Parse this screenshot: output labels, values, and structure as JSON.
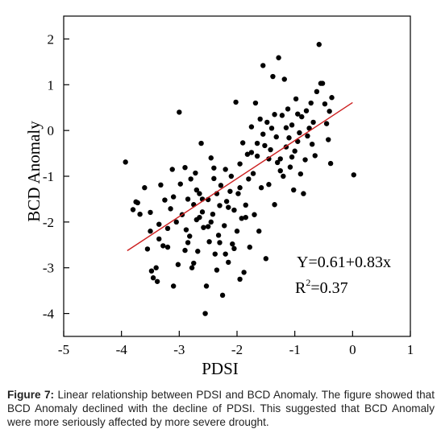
{
  "chart_data": {
    "type": "scatter",
    "xlabel": "PDSI",
    "ylabel": "BCD Anomaly",
    "xlim": [
      -5,
      1
    ],
    "ylim": [
      -4.5,
      2.5
    ],
    "xticks": [
      "-5",
      "-4",
      "-3",
      "-2",
      "-1",
      "0",
      "1"
    ],
    "yticks": [
      "2",
      "1",
      "0",
      "-1",
      "-2",
      "-3",
      "-4"
    ],
    "grid": false,
    "legend": "none",
    "fit_line": {
      "slope": 0.83,
      "intercept": 0.61,
      "x_range": [
        -3.9,
        0.0
      ],
      "color": "#cc1f1f"
    },
    "equation_text": "Y=0.61+0.83x",
    "r2_label": "R",
    "r2_sup": "2",
    "r2_value": "=0.37",
    "marker_color": "#000000",
    "points": [
      [
        -3.93,
        -0.69
      ],
      [
        -3.8,
        -1.73
      ],
      [
        -3.75,
        -1.56
      ],
      [
        -3.72,
        -1.58
      ],
      [
        -3.68,
        -1.83
      ],
      [
        -3.6,
        -1.25
      ],
      [
        -3.55,
        -2.59
      ],
      [
        -3.5,
        -1.79
      ],
      [
        -3.48,
        -3.07
      ],
      [
        -3.45,
        -3.22
      ],
      [
        -3.4,
        -3.0
      ],
      [
        -3.38,
        -3.3
      ],
      [
        -3.35,
        -2.37
      ],
      [
        -3.32,
        -1.19
      ],
      [
        -3.28,
        -2.52
      ],
      [
        -3.25,
        -1.52
      ],
      [
        -3.2,
        -2.14
      ],
      [
        -3.15,
        -1.71
      ],
      [
        -3.12,
        -0.85
      ],
      [
        -3.1,
        -3.4
      ],
      [
        -3.05,
        -2.0
      ],
      [
        -3.02,
        -2.93
      ],
      [
        -3.0,
        0.4
      ],
      [
        -2.98,
        -1.17
      ],
      [
        -2.95,
        -1.84
      ],
      [
        -2.9,
        -0.81
      ],
      [
        -2.88,
        -2.17
      ],
      [
        -2.85,
        -1.5
      ],
      [
        -2.82,
        -2.31
      ],
      [
        -2.8,
        -1.06
      ],
      [
        -2.78,
        -3.0
      ],
      [
        -2.75,
        -1.62
      ],
      [
        -2.72,
        -0.93
      ],
      [
        -2.7,
        -1.95
      ],
      [
        -2.68,
        -2.64
      ],
      [
        -2.65,
        -1.38
      ],
      [
        -2.62,
        -0.28
      ],
      [
        -2.6,
        -1.78
      ],
      [
        -2.58,
        -2.12
      ],
      [
        -2.55,
        -4.0
      ],
      [
        -2.53,
        -3.4
      ],
      [
        -2.5,
        -1.51
      ],
      [
        -2.48,
        -2.43
      ],
      [
        -2.45,
        -0.6
      ],
      [
        -2.42,
        -1.83
      ],
      [
        -2.4,
        -1.05
      ],
      [
        -2.38,
        -2.7
      ],
      [
        -2.35,
        -1.38
      ],
      [
        -2.32,
        -2.29
      ],
      [
        -2.3,
        -1.64
      ],
      [
        -2.28,
        -1.2
      ],
      [
        -2.25,
        -3.6
      ],
      [
        -2.22,
        -2.08
      ],
      [
        -2.2,
        -0.85
      ],
      [
        -2.18,
        -1.55
      ],
      [
        -2.15,
        -2.88
      ],
      [
        -2.12,
        -1.33
      ],
      [
        -2.1,
        -1.0
      ],
      [
        -2.08,
        -2.48
      ],
      [
        -2.05,
        -1.74
      ],
      [
        -2.02,
        0.62
      ],
      [
        -2.0,
        -2.2
      ],
      [
        -1.98,
        -1.38
      ],
      [
        -1.95,
        -0.73
      ],
      [
        -1.92,
        -1.92
      ],
      [
        -1.9,
        -0.27
      ],
      [
        -1.88,
        -3.1
      ],
      [
        -1.85,
        -1.63
      ],
      [
        -1.82,
        -0.52
      ],
      [
        -1.8,
        -1.06
      ],
      [
        -1.78,
        -2.55
      ],
      [
        -1.75,
        0.08
      ],
      [
        -1.72,
        -0.94
      ],
      [
        -1.7,
        -1.84
      ],
      [
        -1.68,
        0.6
      ],
      [
        -1.65,
        -0.56
      ],
      [
        -1.62,
        -2.2
      ],
      [
        -1.6,
        0.25
      ],
      [
        -1.58,
        -1.25
      ],
      [
        -1.55,
        1.42
      ],
      [
        -1.52,
        -0.33
      ],
      [
        -1.5,
        -2.8
      ],
      [
        -1.48,
        0.18
      ],
      [
        -1.45,
        -1.18
      ],
      [
        -1.42,
        -0.42
      ],
      [
        -1.4,
        0.05
      ],
      [
        -1.38,
        1.18
      ],
      [
        -1.35,
        -1.62
      ],
      [
        -1.32,
        -0.14
      ],
      [
        -1.3,
        -0.7
      ],
      [
        -1.28,
        1.59
      ],
      [
        -1.25,
        -0.62
      ],
      [
        -1.22,
        0.33
      ],
      [
        -1.2,
        -1.0
      ],
      [
        -1.18,
        1.12
      ],
      [
        -1.15,
        -0.36
      ],
      [
        -1.12,
        0.47
      ],
      [
        -1.1,
        -0.16
      ],
      [
        -1.08,
        -0.8
      ],
      [
        -1.05,
        0.12
      ],
      [
        -1.02,
        -1.3
      ],
      [
        -1.0,
        -0.45
      ],
      [
        -0.98,
        0.69
      ],
      [
        -0.95,
        -0.24
      ],
      [
        -0.92,
        -0.05
      ],
      [
        -0.9,
        -0.95
      ],
      [
        -0.88,
        0.3
      ],
      [
        -0.85,
        -1.38
      ],
      [
        -0.82,
        -0.64
      ],
      [
        -0.8,
        0.43
      ],
      [
        -0.78,
        -0.12
      ],
      [
        -0.75,
        0.05
      ],
      [
        -0.72,
        0.6
      ],
      [
        -0.7,
        -0.3
      ],
      [
        -0.68,
        0.18
      ],
      [
        -0.65,
        -0.55
      ],
      [
        -0.62,
        0.85
      ],
      [
        -0.58,
        1.88
      ],
      [
        -0.55,
        1.03
      ],
      [
        -0.52,
        1.03
      ],
      [
        -0.48,
        0.58
      ],
      [
        -0.45,
        0.15
      ],
      [
        -0.42,
        -0.2
      ],
      [
        -0.4,
        0.42
      ],
      [
        -0.38,
        -0.72
      ],
      [
        -0.36,
        0.72
      ],
      [
        0.02,
        -0.97
      ],
      [
        -2.6,
        -1.5
      ],
      [
        -2.45,
        -2.0
      ],
      [
        -2.3,
        -2.45
      ],
      [
        -2.15,
        -1.68
      ],
      [
        -2.05,
        -2.58
      ],
      [
        -1.95,
        -1.25
      ],
      [
        -1.85,
        -1.9
      ],
      [
        -1.75,
        -0.48
      ],
      [
        -1.65,
        -0.28
      ],
      [
        -1.55,
        -0.08
      ],
      [
        -1.45,
        -0.62
      ],
      [
        -1.35,
        0.35
      ],
      [
        -1.25,
        -0.88
      ],
      [
        -1.15,
        0.06
      ],
      [
        -1.05,
        -0.58
      ],
      [
        -0.95,
        0.36
      ],
      [
        -3.2,
        -2.55
      ],
      [
        -2.9,
        -2.62
      ],
      [
        -2.7,
        -1.3
      ],
      [
        -2.5,
        -2.1
      ],
      [
        -2.35,
        -3.05
      ],
      [
        -3.5,
        -2.2
      ],
      [
        -3.35,
        -2.05
      ],
      [
        -2.85,
        -2.45
      ],
      [
        -2.65,
        -1.9
      ],
      [
        -2.4,
        -0.82
      ],
      [
        -2.2,
        -2.7
      ],
      [
        -1.95,
        -3.25
      ],
      [
        -3.1,
        -1.45
      ],
      [
        -2.75,
        -2.9
      ]
    ]
  },
  "caption": {
    "label": "Figure 7:",
    "text": " Linear relationship between PDSI and BCD Anomaly. The figure showed that BCD Anomaly declined with the decline of PDSI. This suggested that BCD Anomaly were more seriously affected by more severe drought."
  }
}
